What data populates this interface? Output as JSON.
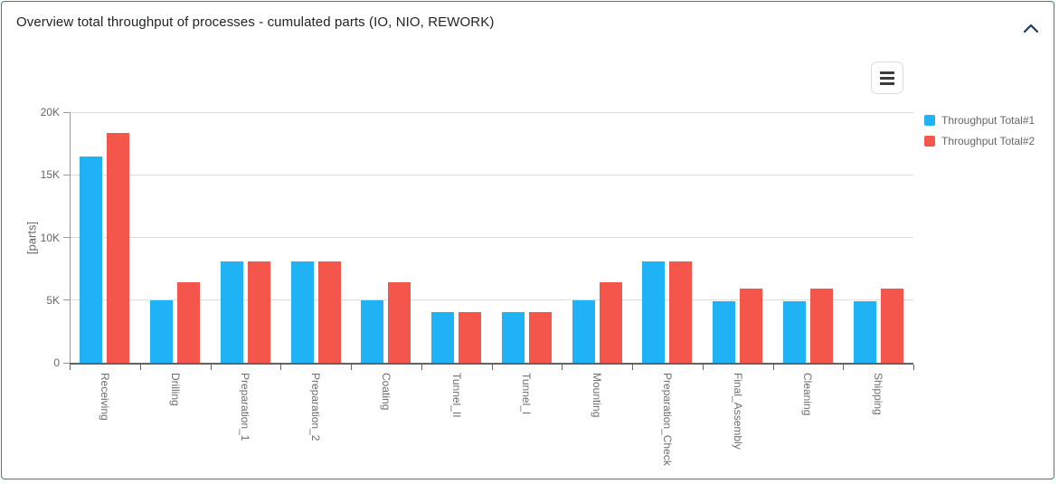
{
  "panel": {
    "title": "Overview total throughput of processes - cumulated parts (IO, NIO, REWORK)",
    "border_color": "#3678b0",
    "collapse_icon": "chevron-up",
    "menu_icon": "hamburger-menu"
  },
  "chart_data": {
    "type": "bar",
    "title": "Overview total throughput of processes - cumulated parts (IO, NIO, REWORK)",
    "xlabel": "",
    "ylabel": "[parts]",
    "ylim": [
      0,
      20000
    ],
    "grid": true,
    "legend_position": "right",
    "yticks": [
      {
        "value": 0,
        "label": "0"
      },
      {
        "value": 5000,
        "label": "5K"
      },
      {
        "value": 10000,
        "label": "10K"
      },
      {
        "value": 15000,
        "label": "15K"
      },
      {
        "value": 20000,
        "label": "20K"
      }
    ],
    "categories": [
      "Receiving",
      "Drilling",
      "Preparation_1",
      "Preparation_2",
      "Coating",
      "Tunnel_II",
      "Tunnel_I",
      "Mounting",
      "Preparation_Check",
      "Final_Assembly",
      "Cleaning",
      "Shipping"
    ],
    "series": [
      {
        "name": "Throughput Total#1",
        "color": "#1FB2F5",
        "values": [
          16450,
          5000,
          8100,
          8100,
          5000,
          4050,
          4050,
          5000,
          8100,
          4900,
          4900,
          4900
        ]
      },
      {
        "name": "Throughput Total#2",
        "color": "#F5564B",
        "values": [
          18350,
          6400,
          8100,
          8100,
          6400,
          4050,
          4050,
          6400,
          8100,
          5900,
          5900,
          5900
        ]
      }
    ]
  }
}
